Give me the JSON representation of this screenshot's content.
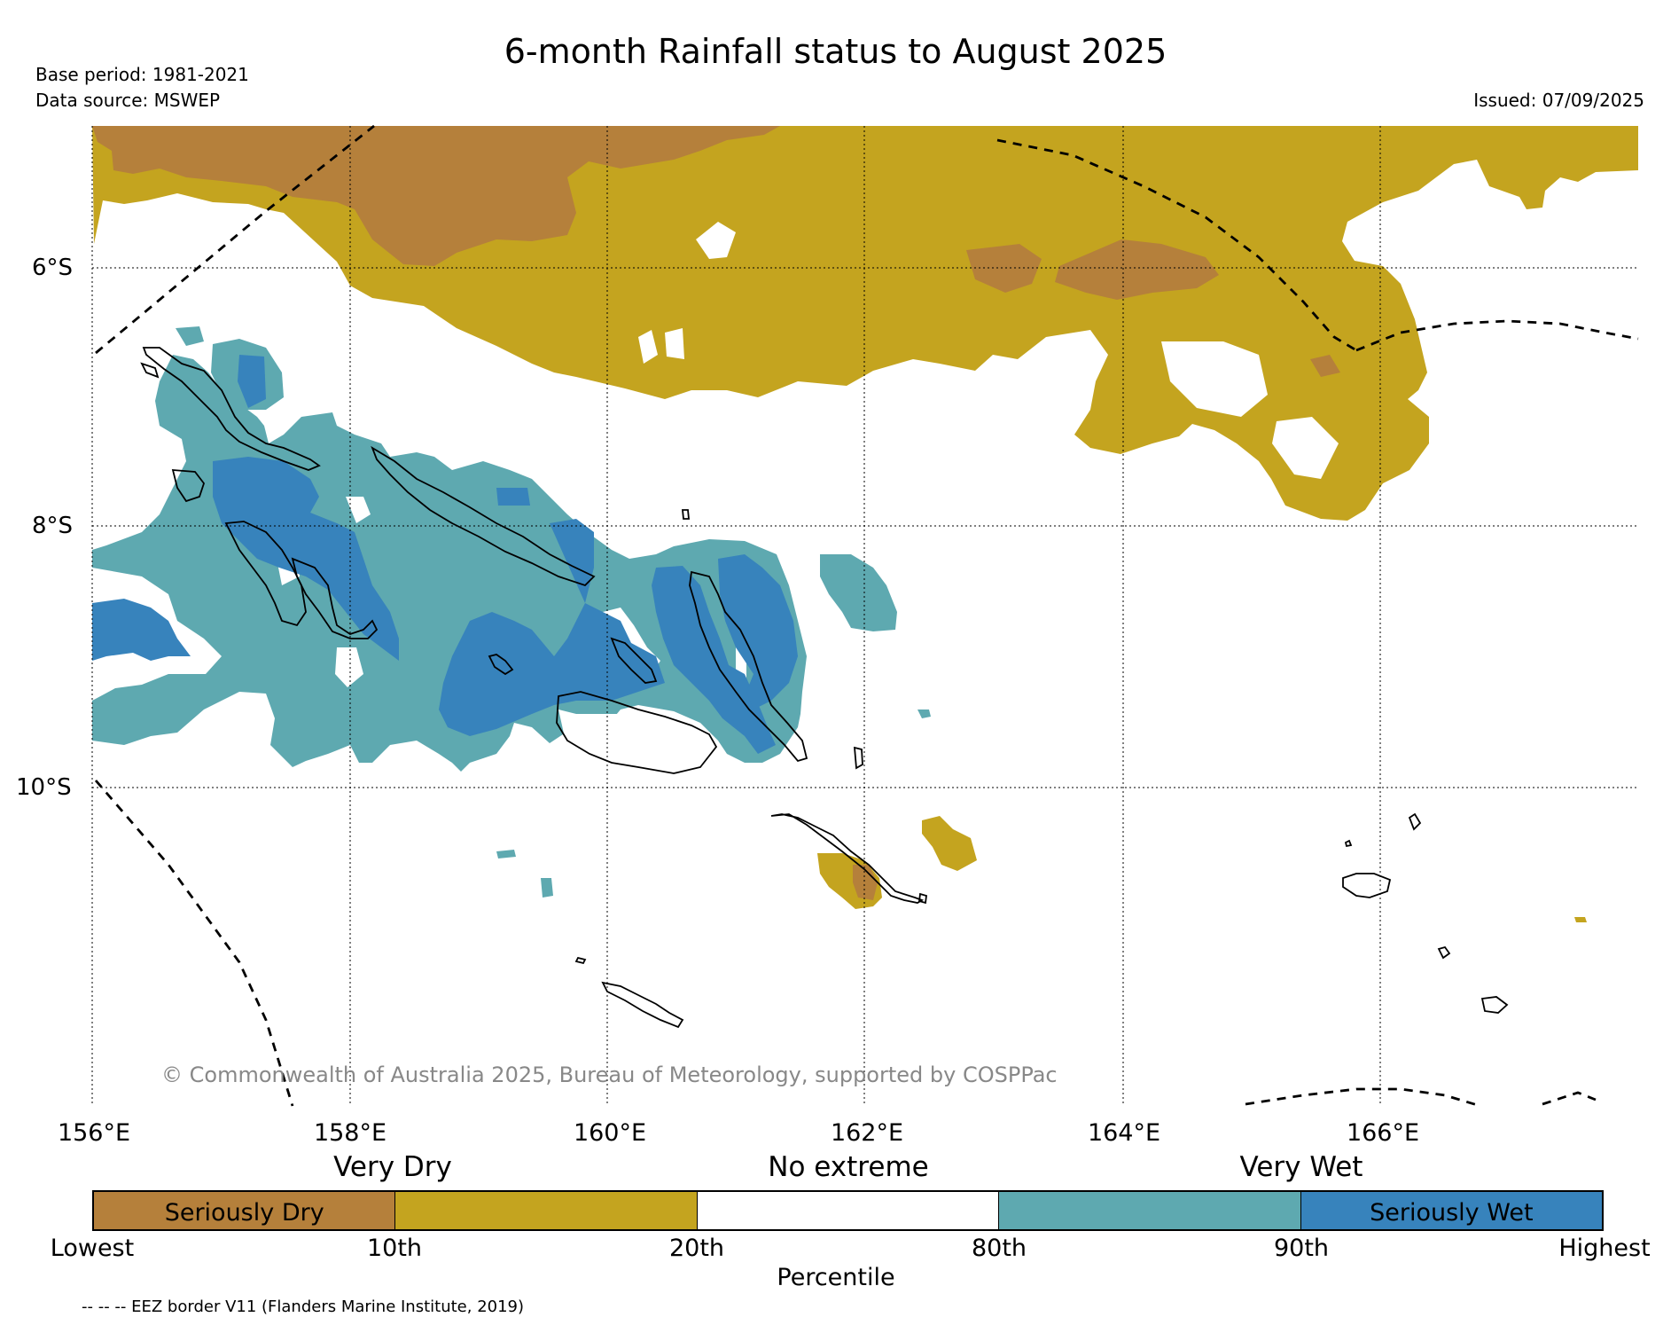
{
  "header": {
    "title": "6-month Rainfall status to August 2025",
    "base_period": "Base period: 1981-2021",
    "data_source": "Data source: MSWEP",
    "issued": "Issued: 07/09/2025"
  },
  "map": {
    "lat_labels": [
      "6°S",
      "8°S",
      "10°S"
    ],
    "lon_labels": [
      "156°E",
      "158°E",
      "160°E",
      "162°E",
      "164°E",
      "166°E"
    ],
    "copyright": "© Commonwealth of Australia 2025, Bureau of Meteorology, supported by COSPPac"
  },
  "legend": {
    "category_headers": [
      "Very Dry",
      "No extreme",
      "Very Wet"
    ],
    "segments": [
      {
        "label": "Seriously Dry",
        "color": "#b5803b"
      },
      {
        "label": "",
        "color": "#c4a41f"
      },
      {
        "label": "",
        "color": "#ffffff"
      },
      {
        "label": "",
        "color": "#5ea9b0"
      },
      {
        "label": "Seriously Wet",
        "color": "#3783bc"
      }
    ],
    "ticks": [
      "Lowest",
      "10th",
      "20th",
      "80th",
      "90th",
      "Highest"
    ],
    "axis_label": "Percentile"
  },
  "footnote": "-- -- -- EEZ border V11 (Flanders Marine Institute, 2019)"
}
